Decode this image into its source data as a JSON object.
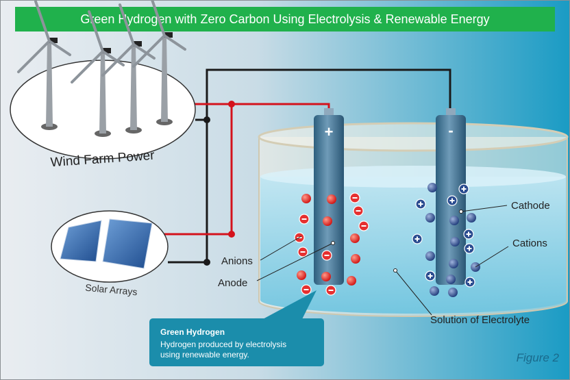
{
  "header": {
    "title": "Green Hydrogen with Zero Carbon Using Electrolysis & Renewable Energy"
  },
  "sources": {
    "wind": "Wind Farm Power",
    "solar": "Solar Arrays"
  },
  "electrodes": {
    "anode_sign": "+",
    "cathode_sign": "-"
  },
  "labels": {
    "cathode": "Cathode",
    "cations": "Cations",
    "anions": "Anions",
    "anode": "Anode",
    "solution": "Solution of Electrolyte"
  },
  "callout": {
    "title": "Green Hydrogen",
    "lines": [
      "Hydrogen produced by electrolysis",
      "using renewable energy."
    ]
  },
  "caption": "Figure 2"
}
